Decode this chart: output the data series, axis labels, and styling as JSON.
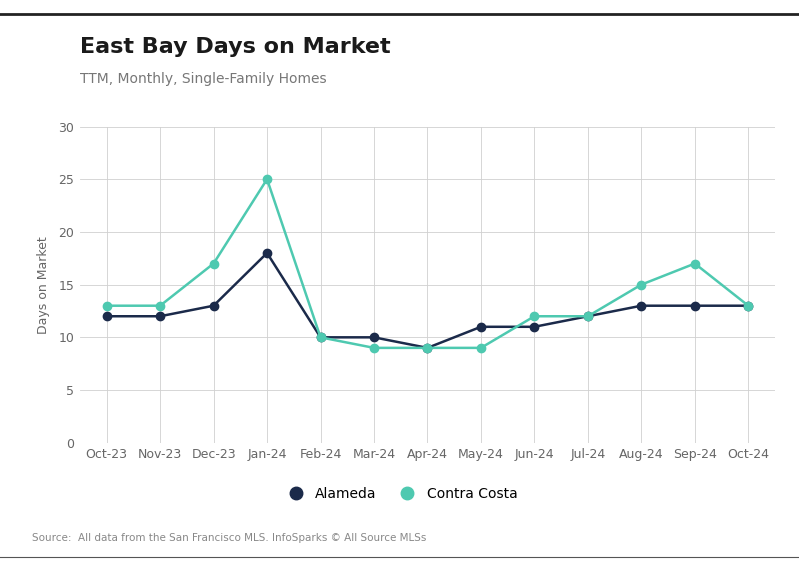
{
  "title": "East Bay Days on Market",
  "subtitle": "TTM, Monthly, Single-Family Homes",
  "ylabel": "Days on Market",
  "source": "Source:  All data from the San Francisco MLS. InfoSparks © All Source MLSs",
  "categories": [
    "Oct-23",
    "Nov-23",
    "Dec-23",
    "Jan-24",
    "Feb-24",
    "Mar-24",
    "Apr-24",
    "May-24",
    "Jun-24",
    "Jul-24",
    "Aug-24",
    "Sep-24",
    "Oct-24"
  ],
  "alameda": [
    12,
    12,
    13,
    18,
    10,
    10,
    9,
    11,
    11,
    12,
    13,
    13,
    13
  ],
  "contra_costa": [
    13,
    13,
    17,
    25,
    10,
    9,
    9,
    9,
    12,
    12,
    15,
    17,
    13
  ],
  "alameda_color": "#1b2a4a",
  "contra_costa_color": "#4ec9b0",
  "background_color": "#ffffff",
  "grid_color": "#d0d0d0",
  "ylim": [
    0,
    30
  ],
  "yticks": [
    0,
    5,
    10,
    15,
    20,
    25,
    30
  ],
  "title_fontsize": 16,
  "subtitle_fontsize": 10,
  "axis_label_fontsize": 9,
  "tick_fontsize": 9,
  "legend_fontsize": 10,
  "line_width": 1.8,
  "marker_size": 6,
  "fig_bg_color": "#ffffff",
  "top_border_color": "#222222",
  "bottom_border_color": "#555555"
}
